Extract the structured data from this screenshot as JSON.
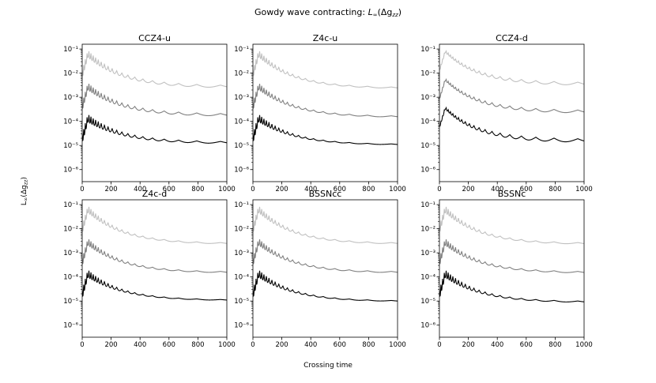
{
  "figure": {
    "title": "Gowdy wave contracting: L∞(Δg_zz)",
    "title_main": "Gowdy wave contracting: ",
    "title_math": "L",
    "title_math_sub": "∞",
    "title_math_rest": "(Δg",
    "title_math_sub2": "zz",
    "title_math_close": ")",
    "xlabel": "Crossing time",
    "ylabel": "L∞(Δg_zz)"
  },
  "chart_data": [
    {
      "type": "line",
      "title": "CCZ4-u",
      "xlim": [
        0,
        1000
      ],
      "ylim_log10": [
        -6.5,
        -0.8
      ],
      "xticks": [
        0,
        200,
        400,
        600,
        800,
        1000
      ],
      "yticks": [
        "10⁻⁶",
        "10⁻⁵",
        "10⁻⁴",
        "10⁻³",
        "10⁻²",
        "10⁻¹"
      ],
      "series": [
        {
          "name": "light",
          "color": "#c0c0c0",
          "start": 0.09,
          "end": 0.003,
          "osc_early": 0.35,
          "osc_late": 0.1
        },
        {
          "name": "medium",
          "color": "#808080",
          "start": 0.004,
          "end": 0.0002,
          "osc_early": 0.35,
          "osc_late": 0.1
        },
        {
          "name": "dark",
          "color": "#000000",
          "start": 0.0002,
          "end": 1.4e-05,
          "osc_early": 0.4,
          "osc_late": 0.08
        }
      ]
    },
    {
      "type": "line",
      "title": "Z4c-u",
      "xlim": [
        0,
        1000
      ],
      "ylim_log10": [
        -6.5,
        -0.8
      ],
      "xticks": [
        0,
        200,
        400,
        600,
        800,
        1000
      ],
      "yticks": [
        "10⁻⁶",
        "10⁻⁵",
        "10⁻⁴",
        "10⁻³",
        "10⁻²",
        "10⁻¹"
      ],
      "series": [
        {
          "name": "light",
          "color": "#c0c0c0",
          "start": 0.09,
          "end": 0.0025,
          "osc_early": 0.35,
          "osc_late": 0.05
        },
        {
          "name": "medium",
          "color": "#808080",
          "start": 0.004,
          "end": 0.00016,
          "osc_early": 0.35,
          "osc_late": 0.05
        },
        {
          "name": "dark",
          "color": "#000000",
          "start": 0.0002,
          "end": 1.1e-05,
          "osc_early": 0.4,
          "osc_late": 0.03
        }
      ]
    },
    {
      "type": "line",
      "title": "CCZ4-d",
      "xlim": [
        0,
        1000
      ],
      "ylim_log10": [
        -6.5,
        -0.8
      ],
      "xticks": [
        0,
        200,
        400,
        600,
        800,
        1000
      ],
      "yticks": [
        "10⁻⁶",
        "10⁻⁵",
        "10⁻⁴",
        "10⁻³",
        "10⁻²",
        "10⁻¹"
      ],
      "series": [
        {
          "name": "light",
          "color": "#c0c0c0",
          "start": 0.09,
          "end": 0.004,
          "osc_early": 0.08,
          "osc_late": 0.12
        },
        {
          "name": "medium",
          "color": "#808080",
          "start": 0.006,
          "end": 0.00028,
          "osc_early": 0.08,
          "osc_late": 0.12
        },
        {
          "name": "dark",
          "color": "#000000",
          "start": 0.0004,
          "end": 1.8e-05,
          "osc_early": 0.08,
          "osc_late": 0.14
        }
      ]
    },
    {
      "type": "line",
      "title": "Z4c-d",
      "xlim": [
        0,
        1000
      ],
      "ylim_log10": [
        -6.5,
        -0.8
      ],
      "xticks": [
        0,
        200,
        400,
        600,
        800,
        1000
      ],
      "yticks": [
        "10⁻⁶",
        "10⁻⁵",
        "10⁻⁴",
        "10⁻³",
        "10⁻²",
        "10⁻¹"
      ],
      "series": [
        {
          "name": "light",
          "color": "#c0c0c0",
          "start": 0.09,
          "end": 0.0025,
          "osc_early": 0.35,
          "osc_late": 0.05
        },
        {
          "name": "medium",
          "color": "#808080",
          "start": 0.004,
          "end": 0.00016,
          "osc_early": 0.35,
          "osc_late": 0.05
        },
        {
          "name": "dark",
          "color": "#000000",
          "start": 0.0002,
          "end": 1.1e-05,
          "osc_early": 0.4,
          "osc_late": 0.03
        }
      ]
    },
    {
      "type": "line",
      "title": "BSSNcc",
      "xlim": [
        0,
        1000
      ],
      "ylim_log10": [
        -6.5,
        -0.8
      ],
      "xticks": [
        0,
        200,
        400,
        600,
        800,
        1000
      ],
      "yticks": [
        "10⁻⁶",
        "10⁻⁵",
        "10⁻⁴",
        "10⁻³",
        "10⁻²",
        "10⁻¹"
      ],
      "series": [
        {
          "name": "light",
          "color": "#c0c0c0",
          "start": 0.09,
          "end": 0.0025,
          "osc_early": 0.35,
          "osc_late": 0.05
        },
        {
          "name": "medium",
          "color": "#808080",
          "start": 0.004,
          "end": 0.00016,
          "osc_early": 0.35,
          "osc_late": 0.05
        },
        {
          "name": "dark",
          "color": "#000000",
          "start": 0.0002,
          "end": 1e-05,
          "osc_early": 0.4,
          "osc_late": 0.03
        }
      ]
    },
    {
      "type": "line",
      "title": "BSSNc",
      "xlim": [
        0,
        1000
      ],
      "ylim_log10": [
        -6.5,
        -0.8
      ],
      "xticks": [
        0,
        200,
        400,
        600,
        800,
        1000
      ],
      "yticks": [
        "10⁻⁶",
        "10⁻⁵",
        "10⁻⁴",
        "10⁻³",
        "10⁻²",
        "10⁻¹"
      ],
      "series": [
        {
          "name": "light",
          "color": "#c0c0c0",
          "start": 0.09,
          "end": 0.0025,
          "osc_early": 0.35,
          "osc_late": 0.06
        },
        {
          "name": "medium",
          "color": "#808080",
          "start": 0.004,
          "end": 0.00016,
          "osc_early": 0.35,
          "osc_late": 0.06
        },
        {
          "name": "dark",
          "color": "#000000",
          "start": 0.0002,
          "end": 9.5e-06,
          "osc_early": 0.4,
          "osc_late": 0.05
        }
      ]
    }
  ]
}
